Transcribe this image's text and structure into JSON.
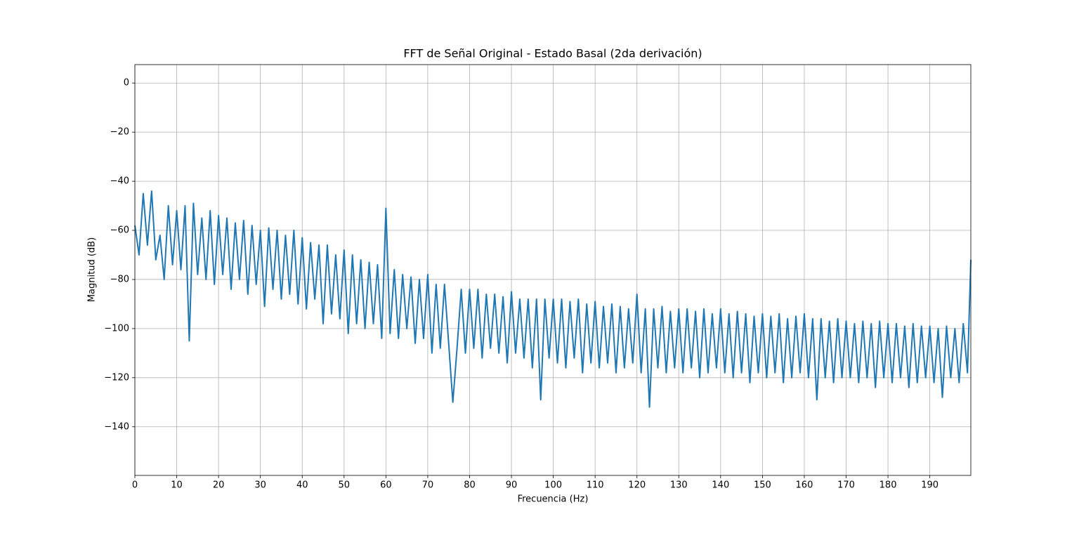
{
  "chart_data": {
    "type": "line",
    "title": "FFT de Señal Original - Estado Basal (2da derivación)",
    "x_label": "Frecuencia (Hz)",
    "y_label": "Magnitud (dB)",
    "xlim": [
      0,
      199.8
    ],
    "ylim": [
      -159.8,
      7.5
    ],
    "xticks": [
      0,
      10,
      20,
      30,
      40,
      50,
      60,
      70,
      80,
      90,
      100,
      110,
      120,
      130,
      140,
      150,
      160,
      170,
      180,
      190
    ],
    "yticks": [
      {
        "value": -140,
        "label": "−140"
      },
      {
        "value": -120,
        "label": "−120"
      },
      {
        "value": -100,
        "label": "−100"
      },
      {
        "value": -80,
        "label": "−80"
      },
      {
        "value": -60,
        "label": "−60"
      },
      {
        "value": -40,
        "label": "−40"
      },
      {
        "value": -20,
        "label": "−20"
      },
      0
    ],
    "grid": true,
    "series": [
      {
        "color": "#1f77b4",
        "x": [
          0,
          1,
          2,
          3,
          4,
          5,
          6,
          7,
          8,
          9,
          10,
          11,
          12,
          13,
          14,
          15,
          16,
          17,
          18,
          19,
          20,
          21,
          22,
          23,
          24,
          25,
          26,
          27,
          28,
          29,
          30,
          31,
          32,
          33,
          34,
          35,
          36,
          37,
          38,
          39,
          40,
          41,
          42,
          43,
          44,
          45,
          46,
          47,
          48,
          49,
          50,
          51,
          52,
          53,
          54,
          55,
          56,
          57,
          58,
          59,
          60,
          61,
          62,
          63,
          64,
          65,
          66,
          67,
          68,
          69,
          70,
          71,
          72,
          73,
          74,
          75,
          76,
          77,
          78,
          79,
          80,
          81,
          82,
          83,
          84,
          85,
          86,
          87,
          88,
          89,
          90,
          91,
          92,
          93,
          94,
          95,
          96,
          97,
          98,
          99,
          100,
          101,
          102,
          103,
          104,
          105,
          106,
          107,
          108,
          109,
          110,
          111,
          112,
          113,
          114,
          115,
          116,
          117,
          118,
          119,
          120,
          121,
          122,
          123,
          124,
          125,
          126,
          127,
          128,
          129,
          130,
          131,
          132,
          133,
          134,
          135,
          136,
          137,
          138,
          139,
          140,
          141,
          142,
          143,
          144,
          145,
          146,
          147,
          148,
          149,
          150,
          151,
          152,
          153,
          154,
          155,
          156,
          157,
          158,
          159,
          160,
          161,
          162,
          163,
          164,
          165,
          166,
          167,
          168,
          169,
          170,
          171,
          172,
          173,
          174,
          175,
          176,
          177,
          178,
          179,
          180,
          181,
          182,
          183,
          184,
          185,
          186,
          187,
          188,
          189,
          190,
          191,
          192,
          193,
          194,
          195,
          196,
          197,
          198,
          199,
          199.8
        ],
        "values": [
          -58,
          -70,
          -45,
          -66,
          -44,
          -72,
          -62,
          -80,
          -50,
          -74,
          -52,
          -76,
          -50,
          -105,
          -49,
          -78,
          -55,
          -80,
          -52,
          -82,
          -54,
          -78,
          -55,
          -84,
          -57,
          -80,
          -56,
          -86,
          -58,
          -82,
          -60,
          -91,
          -59,
          -84,
          -60,
          -88,
          -62,
          -86,
          -60,
          -90,
          -63,
          -92,
          -65,
          -88,
          -66,
          -98,
          -66,
          -94,
          -70,
          -96,
          -68,
          -102,
          -70,
          -98,
          -72,
          -100,
          -73,
          -98,
          -74,
          -104,
          -51,
          -102,
          -76,
          -104,
          -78,
          -100,
          -79,
          -106,
          -80,
          -104,
          -78,
          -110,
          -82,
          -108,
          -82,
          -106,
          -130,
          -108,
          -84,
          -110,
          -84,
          -108,
          -84,
          -112,
          -86,
          -108,
          -86,
          -110,
          -87,
          -114,
          -85,
          -110,
          -88,
          -112,
          -88,
          -116,
          -88,
          -129,
          -88,
          -112,
          -88,
          -114,
          -88,
          -116,
          -89,
          -112,
          -88,
          -118,
          -90,
          -114,
          -89,
          -116,
          -91,
          -114,
          -90,
          -118,
          -91,
          -116,
          -92,
          -114,
          -86,
          -118,
          -92,
          -132,
          -92,
          -116,
          -91,
          -118,
          -93,
          -116,
          -92,
          -118,
          -92,
          -116,
          -93,
          -120,
          -92,
          -118,
          -94,
          -116,
          -92,
          -118,
          -94,
          -120,
          -93,
          -118,
          -94,
          -122,
          -95,
          -118,
          -94,
          -120,
          -95,
          -118,
          -94,
          -122,
          -96,
          -120,
          -95,
          -118,
          -94,
          -120,
          -96,
          -129,
          -96,
          -120,
          -97,
          -122,
          -96,
          -120,
          -97,
          -120,
          -98,
          -122,
          -97,
          -120,
          -98,
          -124,
          -97,
          -120,
          -98,
          -122,
          -98,
          -120,
          -99,
          -124,
          -98,
          -122,
          -99,
          -120,
          -99,
          -122,
          -100,
          -128,
          -99,
          -120,
          -100,
          -122,
          -98,
          -118,
          -72
        ]
      }
    ]
  }
}
